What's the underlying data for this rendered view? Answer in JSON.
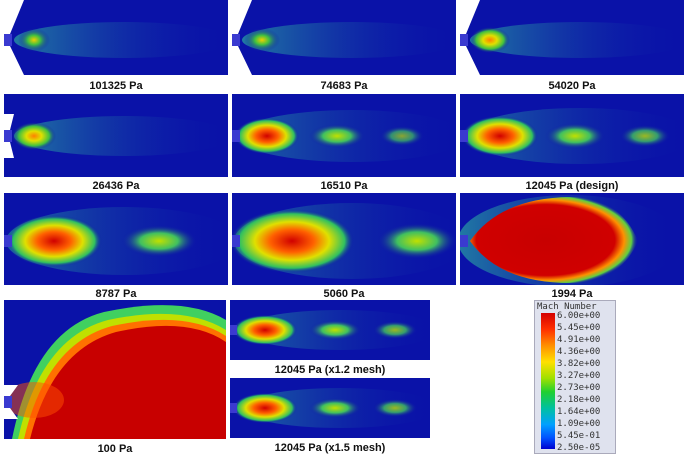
{
  "panels": [
    {
      "caption": "101325 Pa"
    },
    {
      "caption": "74683 Pa"
    },
    {
      "caption": "54020 Pa"
    },
    {
      "caption": "26436 Pa"
    },
    {
      "caption": "16510 Pa"
    },
    {
      "caption": "12045 Pa (design)"
    },
    {
      "caption": "8787 Pa"
    },
    {
      "caption": "5060 Pa"
    },
    {
      "caption": "1994 Pa"
    },
    {
      "caption": "100 Pa"
    },
    {
      "caption": "12045 Pa (x1.2 mesh)"
    },
    {
      "caption": "12045 Pa (x1.5 mesh)"
    }
  ],
  "legend": {
    "title": "Mach Number",
    "labels": [
      "6.00e+00",
      "5.45e+00",
      "4.91e+00",
      "4.36e+00",
      "3.82e+00",
      "3.27e+00",
      "2.73e+00",
      "2.18e+00",
      "1.64e+00",
      "1.09e+00",
      "5.45e-01",
      "2.50e-05"
    ]
  }
}
